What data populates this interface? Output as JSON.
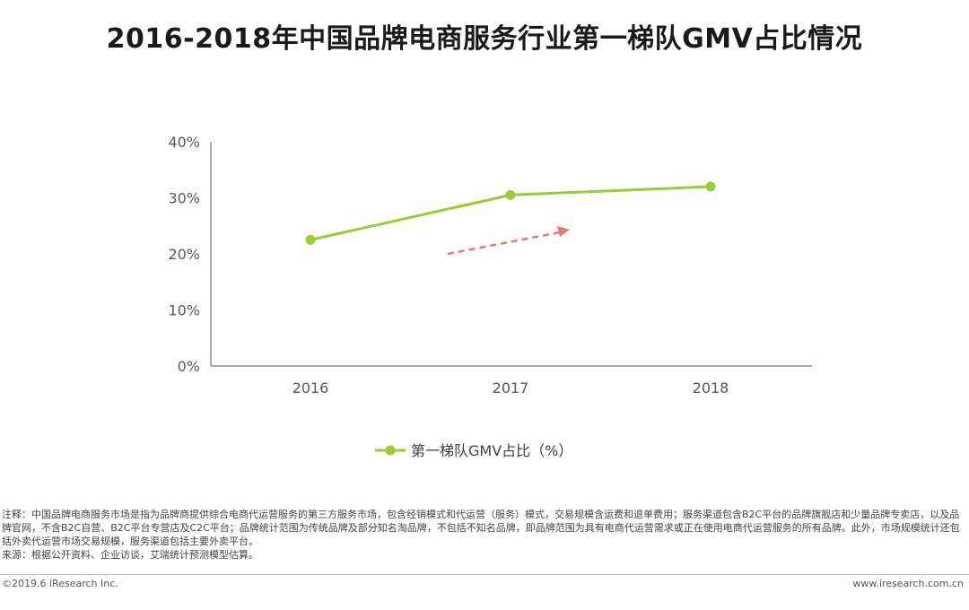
{
  "chart_data": {
    "type": "line",
    "title": "2016-2018年中国品牌电商服务行业第一梯队GMV占比情况",
    "categories": [
      "2016",
      "2017",
      "2018"
    ],
    "series": [
      {
        "name": "第一梯队GMV占比（%）",
        "values": [
          22.5,
          30.5,
          32.0
        ],
        "color": "#9ACD32"
      }
    ],
    "yticks": [
      "0%",
      "10%",
      "20%",
      "30%",
      "40%"
    ],
    "ylim": [
      0,
      40
    ],
    "xlabel": "",
    "ylabel": "",
    "legend_position": "bottom",
    "trend_arrow_color": "#E8777A"
  },
  "notes": {
    "note": "注释：中国品牌电商服务市场是指为品牌商提供综合电商代运营服务的第三方服务市场，包含经销模式和代运营（服务）模式，交易规模含运费和退单费用；服务渠道包含B2C平台的品牌旗舰店和少量品牌专卖店，以及品牌官网，不含B2C自营、B2C平台专营店及C2C平台；品牌统计范围为传统品牌及部分知名淘品牌，不包括不知名品牌，即品牌范围为具有电商代运营需求或正在使用电商代运营服务的所有品牌。此外，市场规模统计还包括外卖代运营市场交易规模，服务渠道包括主要外卖平台。",
    "source": "来源：根据公开资料、企业访谈，艾瑞统计预测模型估算。"
  },
  "footer": {
    "copyright": "©2019.6 iResearch Inc.",
    "website": "www.iresearch.com.cn"
  }
}
